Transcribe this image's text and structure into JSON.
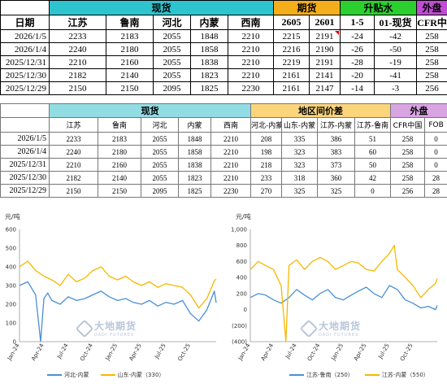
{
  "table1": {
    "groups": {
      "spot": "现货",
      "futures": "期货",
      "basis": "升贴水",
      "external": "外盘"
    },
    "columns": {
      "date": "日期",
      "jiangsu": "江苏",
      "lunan": "鲁南",
      "hebei": "河北",
      "neimeng": "内蒙",
      "xinan": "西南",
      "c2605": "2605",
      "c2601": "2601",
      "spread": "1-5",
      "basis01": "01-现货",
      "cfr": "CFR中"
    },
    "rows": [
      [
        "2026/1/5",
        "2233",
        "2183",
        "2055",
        "1848",
        "2210",
        "2215",
        "2191",
        "-24",
        "-42",
        "258"
      ],
      [
        "2026/1/4",
        "2240",
        "2180",
        "2055",
        "1858",
        "2210",
        "2216",
        "2190",
        "-26",
        "-50",
        "258"
      ],
      [
        "2025/12/31",
        "2210",
        "2160",
        "2055",
        "1838",
        "2210",
        "2219",
        "2191",
        "-28",
        "-19",
        "258"
      ],
      [
        "2025/12/30",
        "2182",
        "2140",
        "2055",
        "1823",
        "2210",
        "2161",
        "2141",
        "-20",
        "-41",
        "258"
      ],
      [
        "2025/12/29",
        "2150",
        "2150",
        "2095",
        "1825",
        "2230",
        "2161",
        "2147",
        "-14",
        "-3",
        "256"
      ]
    ]
  },
  "table2": {
    "groups": {
      "spot": "现货",
      "spread": "地区间价差",
      "external": "外盘"
    },
    "columns": {
      "jiangsu": "江苏",
      "lunan": "鲁南",
      "hebei": "河北",
      "neimeng": "内蒙",
      "xinan": "西南",
      "hb_nm": "河北-内蒙",
      "sd_nm": "山东-内蒙",
      "js_nm": "江苏-内蒙",
      "js_ln": "江苏-鲁南",
      "cfr": "CFR中国",
      "fob": "FOB"
    },
    "rows": [
      [
        "2026/1/5",
        "2233",
        "2183",
        "2055",
        "1848",
        "2210",
        "208",
        "335",
        "386",
        "51",
        "258",
        "0"
      ],
      [
        "2026/1/4",
        "2240",
        "2180",
        "2055",
        "1858",
        "2210",
        "198",
        "323",
        "383",
        "60",
        "258",
        "0"
      ],
      [
        "2025/12/31",
        "2210",
        "2160",
        "2055",
        "1838",
        "2210",
        "218",
        "323",
        "373",
        "50",
        "258",
        "0"
      ],
      [
        "2025/12/30",
        "2182",
        "2140",
        "2055",
        "1823",
        "2210",
        "233",
        "318",
        "360",
        "42",
        "258",
        "28"
      ],
      [
        "2025/12/29",
        "2150",
        "2150",
        "2095",
        "1825",
        "2230",
        "270",
        "325",
        "325",
        "0",
        "256",
        "28"
      ]
    ]
  },
  "watermark": {
    "cn": "大地期货",
    "en": "DADI FUTURES"
  },
  "chart_data": [
    {
      "type": "line",
      "unit": "元/吨",
      "ylim": [
        0,
        600
      ],
      "yticks": [
        "600",
        "500",
        "400",
        "300",
        "200",
        "100",
        "0"
      ],
      "xticks": [
        "Jan-24",
        "Apr-24",
        "Jul-24",
        "Oct-24",
        "Jan-25",
        "Apr-25",
        "Jul-25",
        "Oct-25"
      ],
      "x_range": [
        "2024-01-01",
        "2026-01-05"
      ],
      "series": [
        {
          "name": "河北-内蒙",
          "color": "#4a8fd6",
          "x": [
            "2024-01-01",
            "2024-02-01",
            "2024-03-01",
            "2024-03-20",
            "2024-04-01",
            "2024-04-15",
            "2024-05-01",
            "2024-06-01",
            "2024-07-01",
            "2024-08-01",
            "2024-09-01",
            "2024-10-01",
            "2024-11-01",
            "2024-12-01",
            "2025-01-01",
            "2025-02-01",
            "2025-03-01",
            "2025-04-01",
            "2025-05-01",
            "2025-06-01",
            "2025-07-01",
            "2025-08-01",
            "2025-09-01",
            "2025-10-01",
            "2025-11-01",
            "2025-12-01",
            "2025-12-29",
            "2026-01-05"
          ],
          "values": [
            300,
            320,
            250,
            0,
            230,
            260,
            220,
            200,
            240,
            220,
            230,
            250,
            270,
            240,
            220,
            230,
            210,
            200,
            220,
            190,
            210,
            200,
            220,
            150,
            110,
            170,
            270,
            208
          ]
        },
        {
          "name": "山东-内蒙（330）",
          "color": "#f5b800",
          "x": [
            "2024-01-01",
            "2024-02-01",
            "2024-03-01",
            "2024-04-01",
            "2024-05-01",
            "2024-06-01",
            "2024-07-01",
            "2024-08-01",
            "2024-09-01",
            "2024-10-01",
            "2024-11-01",
            "2024-12-01",
            "2025-01-01",
            "2025-02-01",
            "2025-03-01",
            "2025-04-01",
            "2025-05-01",
            "2025-06-01",
            "2025-07-01",
            "2025-08-01",
            "2025-09-01",
            "2025-10-01",
            "2025-11-01",
            "2025-12-01",
            "2025-12-29",
            "2026-01-05"
          ],
          "values": [
            400,
            430,
            380,
            350,
            330,
            300,
            360,
            320,
            340,
            380,
            400,
            350,
            330,
            350,
            320,
            300,
            320,
            290,
            310,
            300,
            290,
            250,
            180,
            230,
            325,
            335
          ]
        }
      ]
    },
    {
      "type": "line",
      "unit": "元/吨",
      "ylim": [
        -400,
        1000
      ],
      "yticks": [
        "1,000",
        "800",
        "600",
        "400",
        "200",
        "0",
        "(200)",
        "(400)"
      ],
      "xticks": [
        "Jan-24",
        "Apr-24",
        "Jul-24",
        "Oct-24",
        "Jan-25",
        "Apr-25",
        "Jul-25",
        "Oct-25"
      ],
      "x_range": [
        "2024-01-01",
        "2026-01-05"
      ],
      "series": [
        {
          "name": "江苏-鲁南（250）",
          "color": "#4a8fd6",
          "x": [
            "2024-01-01",
            "2024-02-01",
            "2024-03-01",
            "2024-04-01",
            "2024-05-01",
            "2024-06-01",
            "2024-07-01",
            "2024-08-01",
            "2024-09-01",
            "2024-10-01",
            "2024-11-01",
            "2024-12-01",
            "2025-01-01",
            "2025-02-01",
            "2025-03-01",
            "2025-04-01",
            "2025-05-01",
            "2025-06-01",
            "2025-07-01",
            "2025-08-01",
            "2025-09-01",
            "2025-10-01",
            "2025-11-01",
            "2025-12-01",
            "2025-12-29",
            "2026-01-05"
          ],
          "values": [
            150,
            200,
            180,
            120,
            80,
            150,
            250,
            180,
            120,
            200,
            250,
            150,
            120,
            180,
            230,
            280,
            200,
            150,
            300,
            250,
            120,
            80,
            20,
            40,
            0,
            51
          ]
        },
        {
          "name": "江苏-内蒙（550）",
          "color": "#f5b800",
          "x": [
            "2024-01-01",
            "2024-02-01",
            "2024-03-01",
            "2024-04-01",
            "2024-05-01",
            "2024-05-20",
            "2024-06-01",
            "2024-07-01",
            "2024-08-01",
            "2024-09-01",
            "2024-10-01",
            "2024-11-01",
            "2024-12-01",
            "2025-01-01",
            "2025-02-01",
            "2025-03-01",
            "2025-04-01",
            "2025-05-01",
            "2025-06-01",
            "2025-07-01",
            "2025-07-20",
            "2025-08-01",
            "2025-09-01",
            "2025-10-01",
            "2025-11-01",
            "2025-12-01",
            "2025-12-29",
            "2026-01-05"
          ],
          "values": [
            500,
            600,
            550,
            500,
            300,
            -400,
            550,
            620,
            500,
            600,
            650,
            600,
            500,
            550,
            600,
            580,
            500,
            480,
            600,
            700,
            800,
            500,
            400,
            300,
            150,
            250,
            325,
            386
          ]
        }
      ]
    }
  ]
}
